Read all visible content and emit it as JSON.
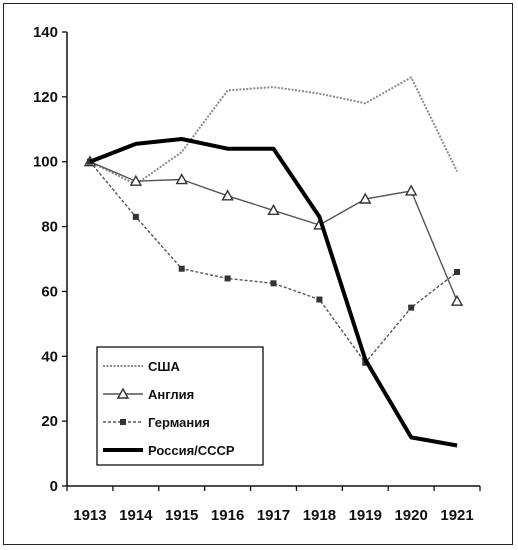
{
  "chart_data": {
    "type": "line",
    "categories": [
      "1913",
      "1914",
      "1915",
      "1916",
      "1917",
      "1918",
      "1919",
      "1920",
      "1921"
    ],
    "ylim": [
      0,
      140
    ],
    "yticks": [
      "0",
      "20",
      "40",
      "60",
      "80",
      "100",
      "120",
      "140"
    ],
    "grid": false,
    "legend_position": "bottom-left",
    "series": [
      {
        "name": "США",
        "values": [
          100,
          93,
          103,
          122,
          123,
          121,
          118,
          126,
          97
        ],
        "color": "#8a8a8a",
        "marker": "none",
        "style": "thin-dotted"
      },
      {
        "name": "Англия",
        "values": [
          100,
          94,
          94.5,
          89.5,
          85,
          80.5,
          88.5,
          91,
          57
        ],
        "color": "#555555",
        "marker": "triangle",
        "style": "thin"
      },
      {
        "name": "Германия",
        "values": [
          100,
          83,
          67,
          64,
          62.5,
          57.5,
          38,
          55,
          66
        ],
        "color": "#555555",
        "marker": "square",
        "style": "thin-dashed"
      },
      {
        "name": "Россия/СССР",
        "values": [
          100,
          105.5,
          107,
          104,
          104,
          83,
          39,
          15,
          12.5
        ],
        "color": "#000000",
        "marker": "none",
        "style": "thick"
      }
    ]
  }
}
